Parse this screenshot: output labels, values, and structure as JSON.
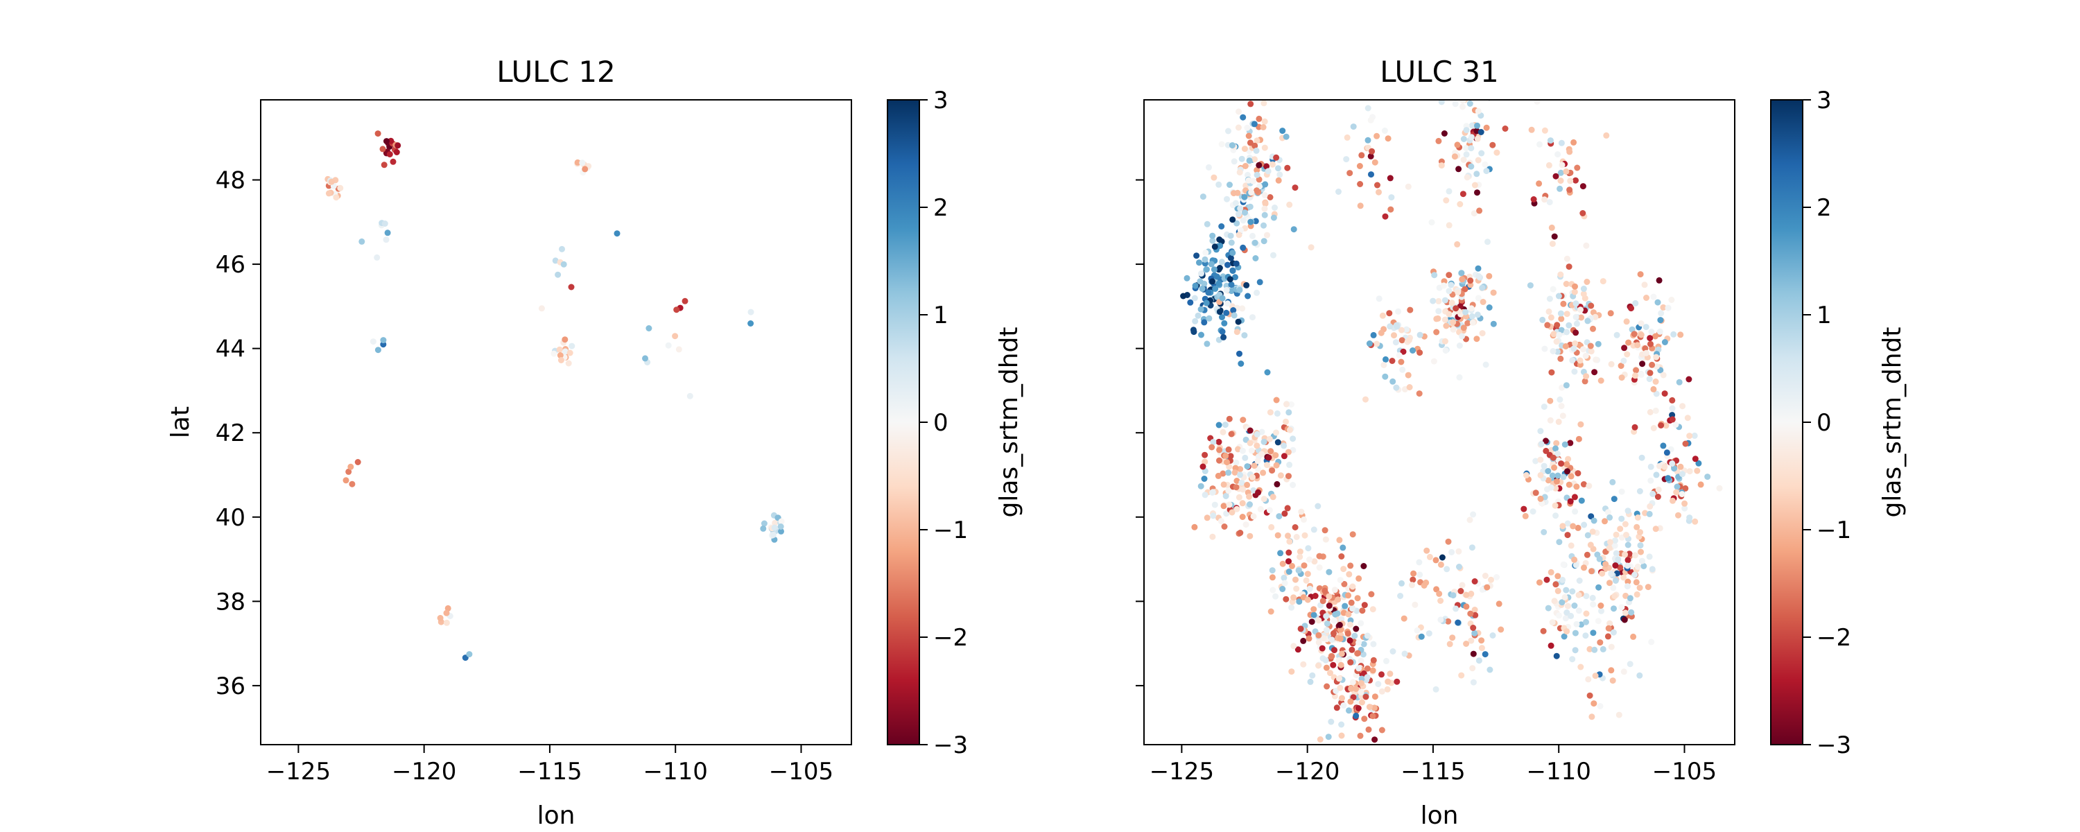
{
  "chart_data": [
    {
      "type": "scatter",
      "title": "LULC 12",
      "xlabel": "lon",
      "ylabel": "lat",
      "xlim": [
        -126.5,
        -103
      ],
      "ylim": [
        34.6,
        49.9
      ],
      "xticks": [
        -125,
        -120,
        -115,
        -110,
        -105
      ],
      "yticks": [
        36,
        38,
        40,
        42,
        44,
        46,
        48
      ],
      "xtick_labels": [
        "−125",
        "−120",
        "−115",
        "−110",
        "−105"
      ],
      "ytick_labels": [
        "36",
        "38",
        "40",
        "42",
        "44",
        "46",
        "48"
      ],
      "colorbar": {
        "label": "glas_srtm_dhdt",
        "range": [
          -3,
          3
        ],
        "ticks": [
          "3",
          "2",
          "1",
          "0",
          "−1",
          "−2",
          "−3"
        ],
        "colormap": "RdBu"
      },
      "clusters": [
        {
          "lon": -123.6,
          "lat": 47.8,
          "mean_value": -0.5,
          "n": 14
        },
        {
          "lon": -121.4,
          "lat": 48.75,
          "mean_value": -2.4,
          "n": 18
        },
        {
          "lon": -121.6,
          "lat": 46.85,
          "mean_value": 1.0,
          "n": 5
        },
        {
          "lon": -122.2,
          "lat": 46.2,
          "mean_value": 0.5,
          "n": 2
        },
        {
          "lon": -121.6,
          "lat": 44.1,
          "mean_value": 0.8,
          "n": 4
        },
        {
          "lon": -123.0,
          "lat": 41.0,
          "mean_value": -1.5,
          "n": 5
        },
        {
          "lon": -119.1,
          "lat": 37.6,
          "mean_value": -0.5,
          "n": 6
        },
        {
          "lon": -118.4,
          "lat": 36.8,
          "mean_value": 1.5,
          "n": 2
        },
        {
          "lon": -113.7,
          "lat": 48.4,
          "mean_value": -0.5,
          "n": 9
        },
        {
          "lon": -112.1,
          "lat": 46.4,
          "mean_value": 3.0,
          "n": 1
        },
        {
          "lon": -114.6,
          "lat": 46.0,
          "mean_value": 0.8,
          "n": 5
        },
        {
          "lon": -114.3,
          "lat": 45.3,
          "mean_value": -2.5,
          "n": 1
        },
        {
          "lon": -115.5,
          "lat": 45.1,
          "mean_value": -0.5,
          "n": 1
        },
        {
          "lon": -114.4,
          "lat": 43.9,
          "mean_value": -0.6,
          "n": 16
        },
        {
          "lon": -109.7,
          "lat": 45.0,
          "mean_value": -2.5,
          "n": 3
        },
        {
          "lon": -110.9,
          "lat": 43.9,
          "mean_value": 0.8,
          "n": 3
        },
        {
          "lon": -109.8,
          "lat": 44.2,
          "mean_value": -0.5,
          "n": 3
        },
        {
          "lon": -107.0,
          "lat": 44.4,
          "mean_value": 1.2,
          "n": 2
        },
        {
          "lon": -109.3,
          "lat": 42.8,
          "mean_value": 0.2,
          "n": 1
        },
        {
          "lon": -106.0,
          "lat": 39.8,
          "mean_value": 0.6,
          "n": 20
        }
      ]
    },
    {
      "type": "scatter",
      "title": "LULC 31",
      "xlabel": "lon",
      "ylabel": "",
      "xlim": [
        -126.5,
        -103
      ],
      "ylim": [
        34.6,
        49.9
      ],
      "xticks": [
        -125,
        -120,
        -115,
        -110,
        -105
      ],
      "yticks": [
        36,
        38,
        40,
        42,
        44,
        46,
        48
      ],
      "xtick_labels": [
        "−125",
        "−120",
        "−115",
        "−110",
        "−105"
      ],
      "colorbar": {
        "label": "glas_srtm_dhdt",
        "range": [
          -3,
          3
        ],
        "ticks": [
          "3",
          "2",
          "1",
          "0",
          "−1",
          "−2",
          "−3"
        ],
        "colormap": "RdBu"
      },
      "clusters": [
        {
          "lon": -123.5,
          "lat": 45.5,
          "mean_value": 1.8,
          "n": 150
        },
        {
          "lon": -122.3,
          "lat": 47.5,
          "mean_value": 0.3,
          "n": 90
        },
        {
          "lon": -121.8,
          "lat": 48.5,
          "mean_value": -0.3,
          "n": 60
        },
        {
          "lon": -123.0,
          "lat": 41.0,
          "mean_value": -0.6,
          "n": 110
        },
        {
          "lon": -121.5,
          "lat": 41.5,
          "mean_value": -0.3,
          "n": 80
        },
        {
          "lon": -119.0,
          "lat": 37.5,
          "mean_value": -0.8,
          "n": 160
        },
        {
          "lon": -118.0,
          "lat": 36.0,
          "mean_value": -0.6,
          "n": 120
        },
        {
          "lon": -120.5,
          "lat": 38.8,
          "mean_value": -0.5,
          "n": 60
        },
        {
          "lon": -117.5,
          "lat": 48.5,
          "mean_value": -0.3,
          "n": 30
        },
        {
          "lon": -113.5,
          "lat": 48.5,
          "mean_value": -0.4,
          "n": 70
        },
        {
          "lon": -110.0,
          "lat": 48.0,
          "mean_value": -0.5,
          "n": 40
        },
        {
          "lon": -114.0,
          "lat": 45.0,
          "mean_value": -0.3,
          "n": 120
        },
        {
          "lon": -116.5,
          "lat": 44.0,
          "mean_value": -0.4,
          "n": 50
        },
        {
          "lon": -109.5,
          "lat": 44.5,
          "mean_value": -0.5,
          "n": 110
        },
        {
          "lon": -106.5,
          "lat": 44.0,
          "mean_value": -0.6,
          "n": 90
        },
        {
          "lon": -110.0,
          "lat": 41.0,
          "mean_value": -0.3,
          "n": 100
        },
        {
          "lon": -105.5,
          "lat": 41.0,
          "mean_value": -0.3,
          "n": 80
        },
        {
          "lon": -107.5,
          "lat": 39.0,
          "mean_value": 0.0,
          "n": 120
        },
        {
          "lon": -109.5,
          "lat": 38.0,
          "mean_value": -0.3,
          "n": 70
        },
        {
          "lon": -113.5,
          "lat": 38.0,
          "mean_value": -0.2,
          "n": 60
        },
        {
          "lon": -115.5,
          "lat": 38.0,
          "mean_value": -0.2,
          "n": 30
        },
        {
          "lon": -108.0,
          "lat": 36.5,
          "mean_value": -0.5,
          "n": 25
        }
      ]
    }
  ]
}
